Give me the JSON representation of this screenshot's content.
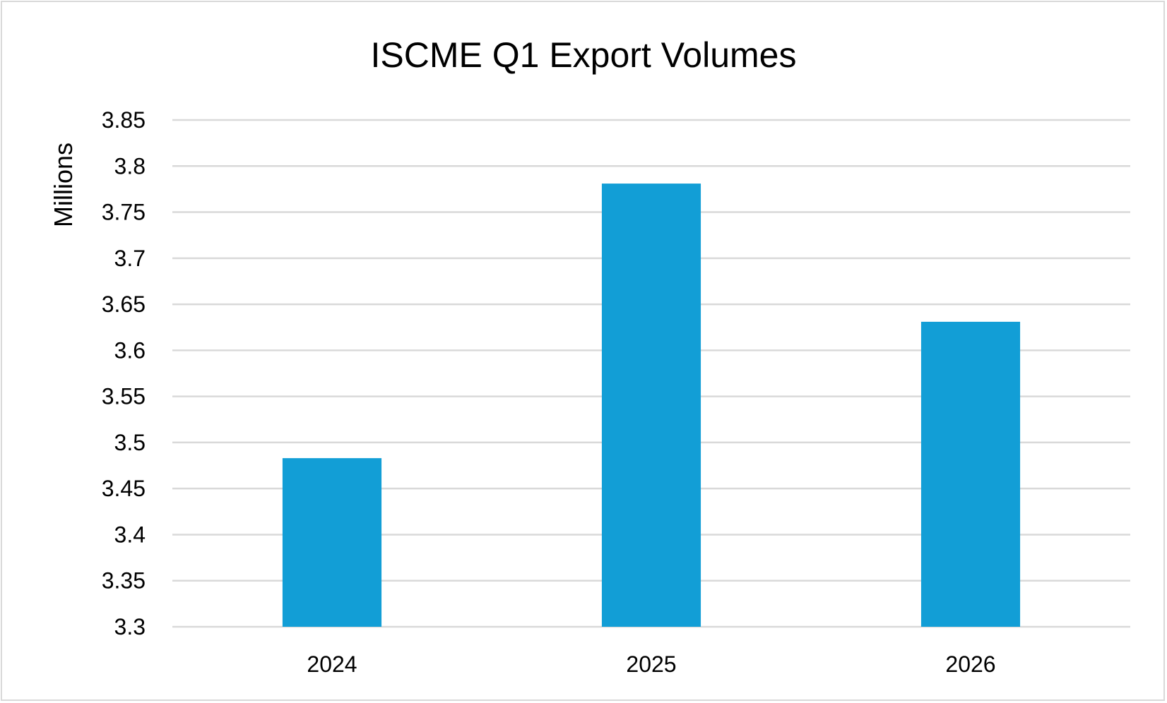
{
  "chart_data": {
    "type": "bar",
    "title": "ISCME Q1 Export Volumes",
    "xlabel": "",
    "ylabel": "Millions",
    "categories": [
      "2024",
      "2025",
      "2026"
    ],
    "values": [
      3.483,
      3.781,
      3.631
    ],
    "ylim": [
      3.3,
      3.85
    ],
    "y_ticks": [
      "3.3",
      "3.35",
      "3.4",
      "3.45",
      "3.5",
      "3.55",
      "3.6",
      "3.65",
      "3.7",
      "3.75",
      "3.8",
      "3.85"
    ],
    "grid": true,
    "legend": "none",
    "colors": {
      "bar": "#129ED6",
      "grid": "#D9D9D9",
      "text": "#000000"
    }
  }
}
